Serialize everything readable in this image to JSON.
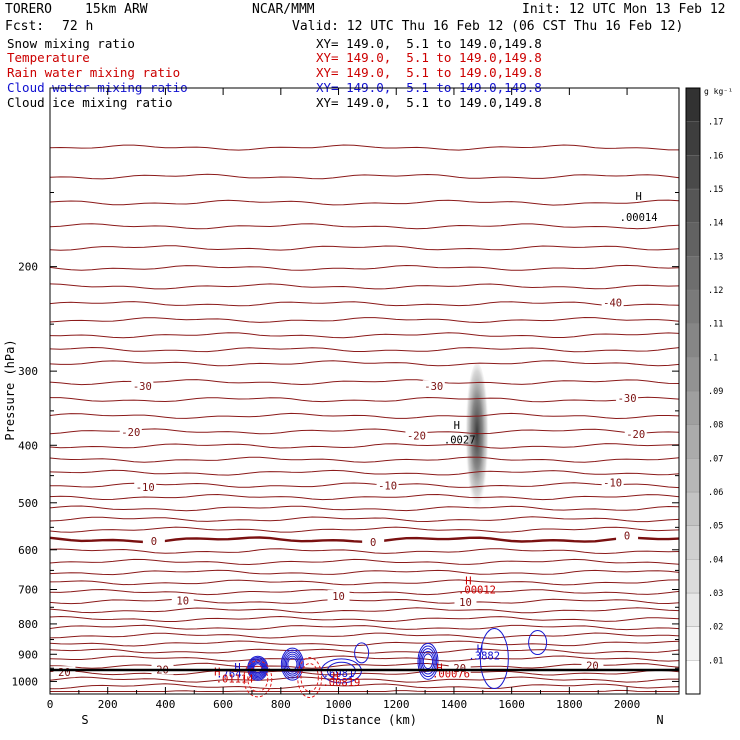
{
  "header": {
    "model": "TORERO",
    "grid": "15km ARW",
    "center": "NCAR/MMM",
    "init": "Init: 12 UTC Mon 13 Feb 12",
    "fcst_label": "Fcst:",
    "fcst_value": "72 h",
    "valid": "Valid: 12 UTC Thu 16 Feb 12 (06 CST Thu 16 Feb 12)"
  },
  "legend": [
    {
      "label": "Snow mixing ratio",
      "xy": "XY= 149.0,  5.1 to 149.0,149.8",
      "color": "#000000"
    },
    {
      "label": "Temperature",
      "xy": "XY= 149.0,  5.1 to 149.0,149.8",
      "color": "#cc0000"
    },
    {
      "label": "Rain water mixing ratio",
      "xy": "XY= 149.0,  5.1 to 149.0,149.8",
      "color": "#cc0000"
    },
    {
      "label": "Cloud water mixing ratio",
      "xy": "XY= 149.0,  5.1 to 149.0,149.8",
      "color": "#1010d0"
    },
    {
      "label": "Cloud ice mixing ratio",
      "xy": "XY= 149.0,  5.1 to 149.0,149.8",
      "color": "#000000"
    }
  ],
  "colors": {
    "temperature": "#8b1a1a",
    "zero_isotherm": "#7a1010",
    "rain": "#e02020",
    "cloud_water": "#1a1ad0",
    "cloud_ice": "#000000",
    "snow_shade": "#555555"
  },
  "chart_data": {
    "type": "cross-section",
    "xlabel": "Distance (km)",
    "ylabel": "Pressure (hPa)",
    "x_ticks": [
      0,
      200,
      400,
      600,
      800,
      1000,
      1200,
      1400,
      1600,
      1800,
      2000
    ],
    "y_ticks": [
      200,
      300,
      400,
      500,
      600,
      700,
      800,
      900,
      1000
    ],
    "xlim": [
      0,
      2180
    ],
    "ylim": [
      1050,
      100
    ],
    "y_scale": "log",
    "left_end": "S",
    "right_end": "N",
    "colorbar": {
      "unit": "g kg⁻¹",
      "levels": [
        ".01",
        ".02",
        ".03",
        ".04",
        ".05",
        ".06",
        ".07",
        ".08",
        ".09",
        ".1",
        ".11",
        ".12",
        ".13",
        ".14",
        ".15",
        ".16",
        ".17"
      ]
    },
    "temperature_contour_labels": [
      {
        "x": 1950,
        "p": 230,
        "text": "-40"
      },
      {
        "x": 320,
        "p": 318,
        "text": "-30"
      },
      {
        "x": 1330,
        "p": 318,
        "text": "-30"
      },
      {
        "x": 2000,
        "p": 333,
        "text": "-30"
      },
      {
        "x": 280,
        "p": 380,
        "text": "-20"
      },
      {
        "x": 1270,
        "p": 385,
        "text": "-20"
      },
      {
        "x": 2030,
        "p": 383,
        "text": "-20"
      },
      {
        "x": 330,
        "p": 470,
        "text": "-10"
      },
      {
        "x": 1170,
        "p": 468,
        "text": "-10"
      },
      {
        "x": 1950,
        "p": 462,
        "text": "-10"
      },
      {
        "x": 360,
        "p": 580,
        "text": "0"
      },
      {
        "x": 1120,
        "p": 582,
        "text": "0"
      },
      {
        "x": 2000,
        "p": 568,
        "text": "0"
      },
      {
        "x": 460,
        "p": 730,
        "text": "10"
      },
      {
        "x": 1000,
        "p": 718,
        "text": "10"
      },
      {
        "x": 1440,
        "p": 735,
        "text": "10"
      },
      {
        "x": 50,
        "p": 965,
        "text": "20"
      },
      {
        "x": 390,
        "p": 955,
        "text": "20"
      },
      {
        "x": 1420,
        "p": 950,
        "text": "20"
      },
      {
        "x": 1880,
        "p": 940,
        "text": "20"
      }
    ],
    "maxima_labels": [
      {
        "x": 2040,
        "p": 152,
        "text": "H",
        "color": "#000000"
      },
      {
        "x": 2040,
        "p": 165,
        "text": ".00014",
        "color": "#000000"
      },
      {
        "x": 1410,
        "p": 370,
        "text": "H",
        "color": "#000000"
      },
      {
        "x": 1420,
        "p": 391,
        "text": ".0027",
        "color": "#000000"
      },
      {
        "x": 1450,
        "p": 676,
        "text": "H",
        "color": "#cc0000"
      },
      {
        "x": 1480,
        "p": 700,
        "text": ".00012",
        "color": "#cc0000"
      },
      {
        "x": 1490,
        "p": 880,
        "text": "H",
        "color": "#1010d0"
      },
      {
        "x": 1505,
        "p": 905,
        "text": ".3882",
        "color": "#1010d0"
      },
      {
        "x": 650,
        "p": 945,
        "text": "H",
        "color": "#1010d0"
      },
      {
        "x": 620,
        "p": 970,
        "text": ".764",
        "color": "#1010d0"
      },
      {
        "x": 1000,
        "p": 968,
        "text": ".6981",
        "color": "#1010d0"
      },
      {
        "x": 580,
        "p": 963,
        "text": "H",
        "color": "#cc0000"
      },
      {
        "x": 640,
        "p": 988,
        "text": ".01114",
        "color": "#cc0000"
      },
      {
        "x": 1350,
        "p": 948,
        "text": "H",
        "color": "#cc0000"
      },
      {
        "x": 1390,
        "p": 970,
        "text": ".00076",
        "color": "#cc0000"
      },
      {
        "x": 990,
        "p": 980,
        "text": "H",
        "color": "#cc0000"
      },
      {
        "x": 1010,
        "p": 1003,
        "text": ".00819",
        "color": "#cc0000"
      }
    ],
    "snow_column": {
      "x_center": 1480,
      "p_top": 300,
      "p_bottom": 500,
      "peak": 0.17
    }
  }
}
